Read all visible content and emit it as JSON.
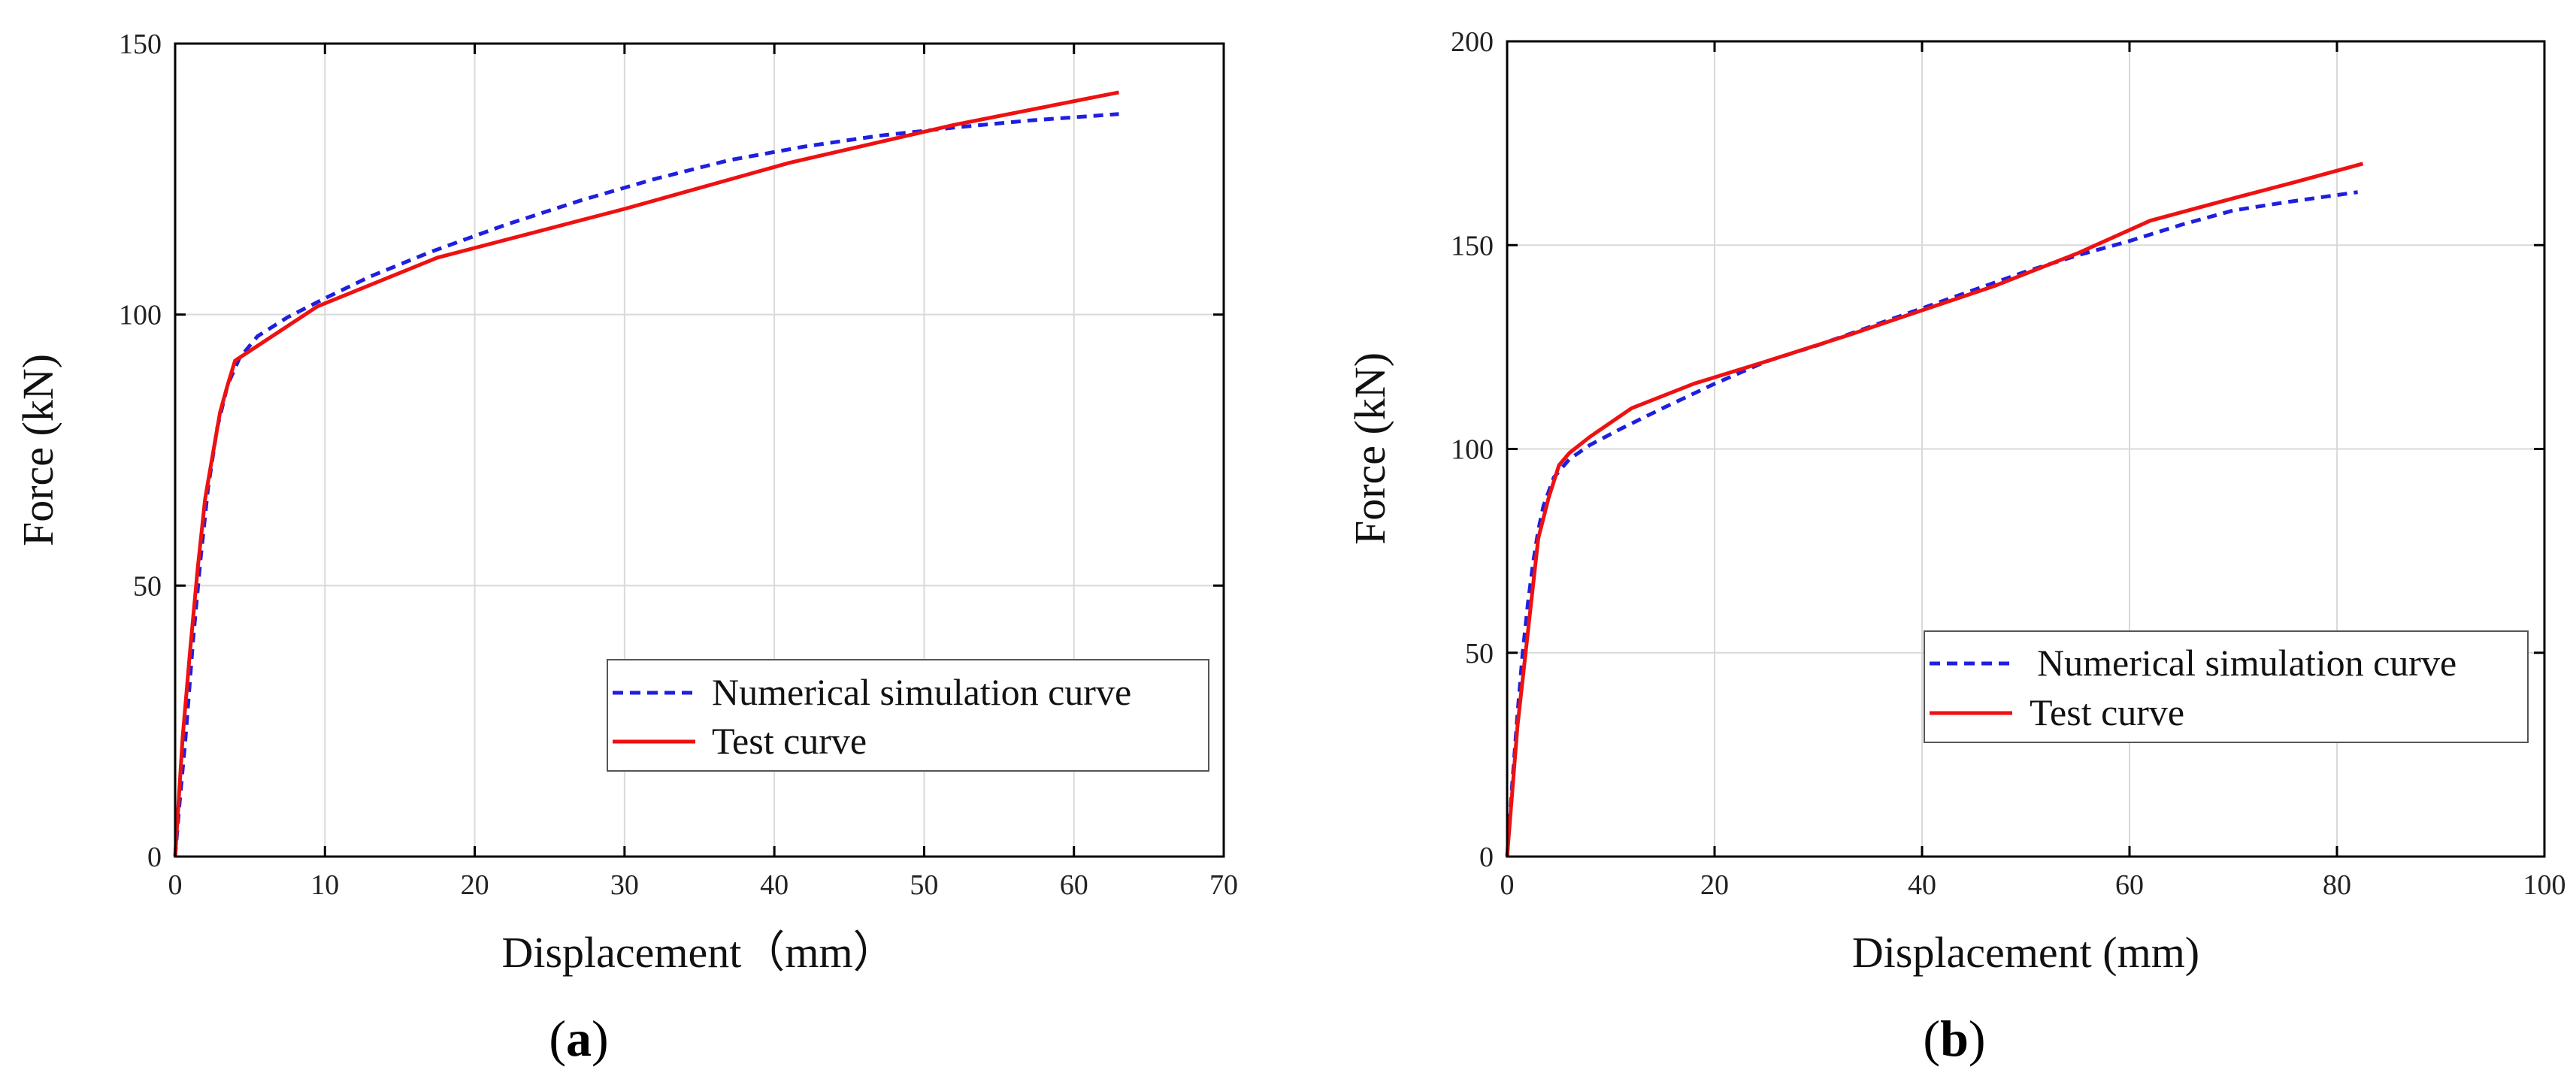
{
  "chart_data": [
    {
      "type": "line",
      "panel_label": "a",
      "xlabel": "Displacement（mm）",
      "ylabel": "Force (kN)",
      "xlim": [
        0,
        70
      ],
      "ylim": [
        0,
        150
      ],
      "xticks": [
        0,
        10,
        20,
        30,
        40,
        50,
        60,
        70
      ],
      "yticks": [
        0,
        50,
        100,
        150
      ],
      "grid": true,
      "legend_position": "bottom-right",
      "series": [
        {
          "name": "Numerical simulation curve",
          "color": "#1f1fe0",
          "style": "dashed",
          "x": [
            0,
            0.3,
            0.7,
            1.2,
            1.7,
            2.2,
            2.8,
            3.5,
            4.3,
            5.5,
            7.5,
            10,
            13,
            17,
            22,
            27,
            32,
            37,
            42,
            47,
            52,
            57,
            63
          ],
          "y": [
            0,
            10,
            22,
            40,
            55,
            68,
            79,
            87,
            92,
            96,
            99.5,
            103,
            107,
            111.5,
            116.5,
            121,
            125,
            128.5,
            131,
            133,
            134.5,
            135.8,
            137
          ]
        },
        {
          "name": "Test curve",
          "color": "#ee1111",
          "style": "solid",
          "x": [
            0,
            0.5,
            1.0,
            1.5,
            2.0,
            2.5,
            3.0,
            3.5,
            4.0,
            9.5,
            17.5,
            30,
            41,
            52,
            63
          ],
          "y": [
            0,
            22,
            38,
            53,
            66,
            74,
            82,
            87,
            91.5,
            101.5,
            110.5,
            119.5,
            128,
            135,
            141
          ]
        }
      ]
    },
    {
      "type": "line",
      "panel_label": "b",
      "xlabel": "Displacement (mm)",
      "ylabel": "Force (kN)",
      "xlim": [
        0,
        100
      ],
      "ylim": [
        0,
        200
      ],
      "xticks": [
        0,
        20,
        40,
        60,
        80,
        100
      ],
      "yticks": [
        0,
        50,
        100,
        150,
        200
      ],
      "grid": true,
      "legend_position": "bottom-right",
      "series": [
        {
          "name": "Numerical simulation curve",
          "color": "#1f1fe0",
          "style": "dashed",
          "x": [
            0,
            0.5,
            1.0,
            1.5,
            2.0,
            2.5,
            3.0,
            3.5,
            4.5,
            6,
            8,
            11,
            15,
            20,
            25,
            30,
            35,
            40,
            45,
            50,
            55,
            60,
            65,
            70,
            75,
            82
          ],
          "y": [
            0,
            18,
            35,
            50,
            62,
            72,
            80,
            86,
            93,
            97.5,
            101,
            105,
            110,
            116,
            121.5,
            125.5,
            130,
            134.5,
            139,
            143.5,
            147.5,
            151,
            155,
            158.5,
            160.5,
            163
          ]
        },
        {
          "name": "Test curve",
          "color": "#ee1111",
          "style": "solid",
          "x": [
            0,
            1,
            2,
            3,
            4,
            5,
            6,
            8,
            12,
            18,
            25,
            33,
            40,
            47,
            55,
            62,
            70,
            76,
            82.5
          ],
          "y": [
            0,
            32,
            55,
            78,
            88,
            96,
            99,
            103,
            110,
            116,
            121.5,
            128,
            134,
            140,
            148,
            156,
            161.5,
            165.5,
            170
          ]
        }
      ]
    }
  ]
}
